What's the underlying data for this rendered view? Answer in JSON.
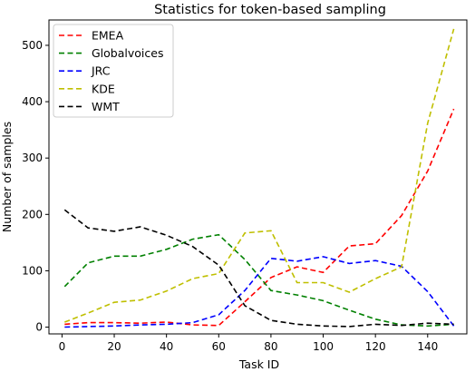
{
  "chart_data": {
    "type": "line",
    "title": "Statistics for token-based sampling",
    "xlabel": "Task ID",
    "ylabel": "Number of samples",
    "xlim": [
      -5,
      155
    ],
    "ylim": [
      -12,
      545
    ],
    "xticks": [
      0,
      20,
      40,
      60,
      80,
      100,
      120,
      140
    ],
    "yticks": [
      0,
      100,
      200,
      300,
      400,
      500
    ],
    "grid": false,
    "legend_position": "top-left",
    "x": [
      1,
      10,
      20,
      30,
      40,
      50,
      60,
      70,
      80,
      90,
      100,
      110,
      120,
      130,
      140,
      150
    ],
    "series": [
      {
        "name": "EMEA",
        "color": "#ff0000",
        "values": [
          5,
          8,
          8,
          7,
          9,
          4,
          3,
          45,
          88,
          107,
          97,
          144,
          148,
          198,
          277,
          387
        ]
      },
      {
        "name": "Globalvoices",
        "color": "#008000",
        "values": [
          72,
          114,
          126,
          126,
          138,
          156,
          164,
          120,
          65,
          57,
          47,
          30,
          14,
          4,
          2,
          5
        ]
      },
      {
        "name": "JRC",
        "color": "#0000ff",
        "values": [
          0,
          1,
          2,
          4,
          5,
          8,
          22,
          65,
          122,
          117,
          125,
          113,
          118,
          108,
          63,
          2
        ]
      },
      {
        "name": "KDE",
        "color": "#bfbf00",
        "values": [
          9,
          25,
          44,
          48,
          64,
          86,
          95,
          167,
          171,
          79,
          79,
          62,
          86,
          107,
          362,
          529
        ]
      },
      {
        "name": "WMT",
        "color": "#000000",
        "values": [
          208,
          176,
          170,
          178,
          163,
          143,
          110,
          38,
          12,
          5,
          2,
          1,
          5,
          3,
          7,
          5
        ]
      }
    ]
  }
}
